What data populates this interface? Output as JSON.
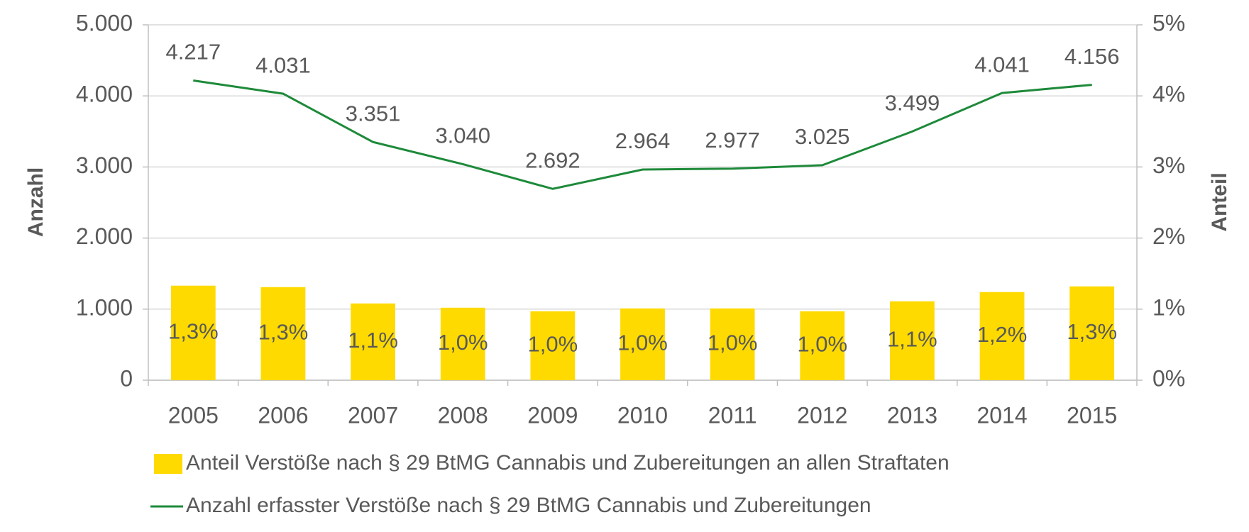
{
  "chart_data": {
    "type": "bar-line",
    "categories": [
      "2005",
      "2006",
      "2007",
      "2008",
      "2009",
      "2010",
      "2011",
      "2012",
      "2013",
      "2014",
      "2015"
    ],
    "y_label": "Anzahl",
    "y2_label": "Anteil",
    "ylim": [
      0,
      5000
    ],
    "yticks": [
      0,
      {
        "value": 1000,
        "label": "1.000"
      },
      {
        "value": 2000,
        "label": "2.000"
      },
      {
        "value": 3000,
        "label": "3.000"
      },
      {
        "value": 4000,
        "label": "4.000"
      },
      {
        "value": 5000,
        "label": "5.000"
      }
    ],
    "y2lim": [
      0,
      5
    ],
    "y2ticks": [
      {
        "value": 0,
        "label": "0%"
      },
      {
        "value": 1,
        "label": "1%"
      },
      {
        "value": 2,
        "label": "2%"
      },
      {
        "value": 3,
        "label": "3%"
      },
      {
        "value": 4,
        "label": "4%"
      },
      {
        "value": 5,
        "label": "5%"
      }
    ],
    "grid": true,
    "series": [
      {
        "name": "Anteil Verstöße nach § 29 BtMG Cannabis und Zubereitungen an allen Straftaten",
        "type": "bar",
        "axis": "y2",
        "color": "#FFDA00",
        "values": [
          1.33,
          1.31,
          1.08,
          1.02,
          0.97,
          1.01,
          1.01,
          0.97,
          1.11,
          1.24,
          1.32
        ],
        "value_labels": [
          "1,3%",
          "1,3%",
          "1,1%",
          "1,0%",
          "1,0%",
          "1,0%",
          "1,0%",
          "1,0%",
          "1,1%",
          "1,2%",
          "1,3%"
        ]
      },
      {
        "name": "Anzahl erfasster Verstöße nach § 29 BtMG Cannabis und Zubereitungen",
        "type": "line",
        "axis": "y",
        "color": "#1E8A3A",
        "values": [
          4217,
          4031,
          3351,
          3040,
          2692,
          2964,
          2977,
          3025,
          3499,
          4041,
          4156
        ],
        "value_labels": [
          "4.217",
          "4.031",
          "3.351",
          "3.040",
          "2.692",
          "2.964",
          "2.977",
          "3.025",
          "3.499",
          "4.041",
          "4.156"
        ]
      }
    ]
  }
}
